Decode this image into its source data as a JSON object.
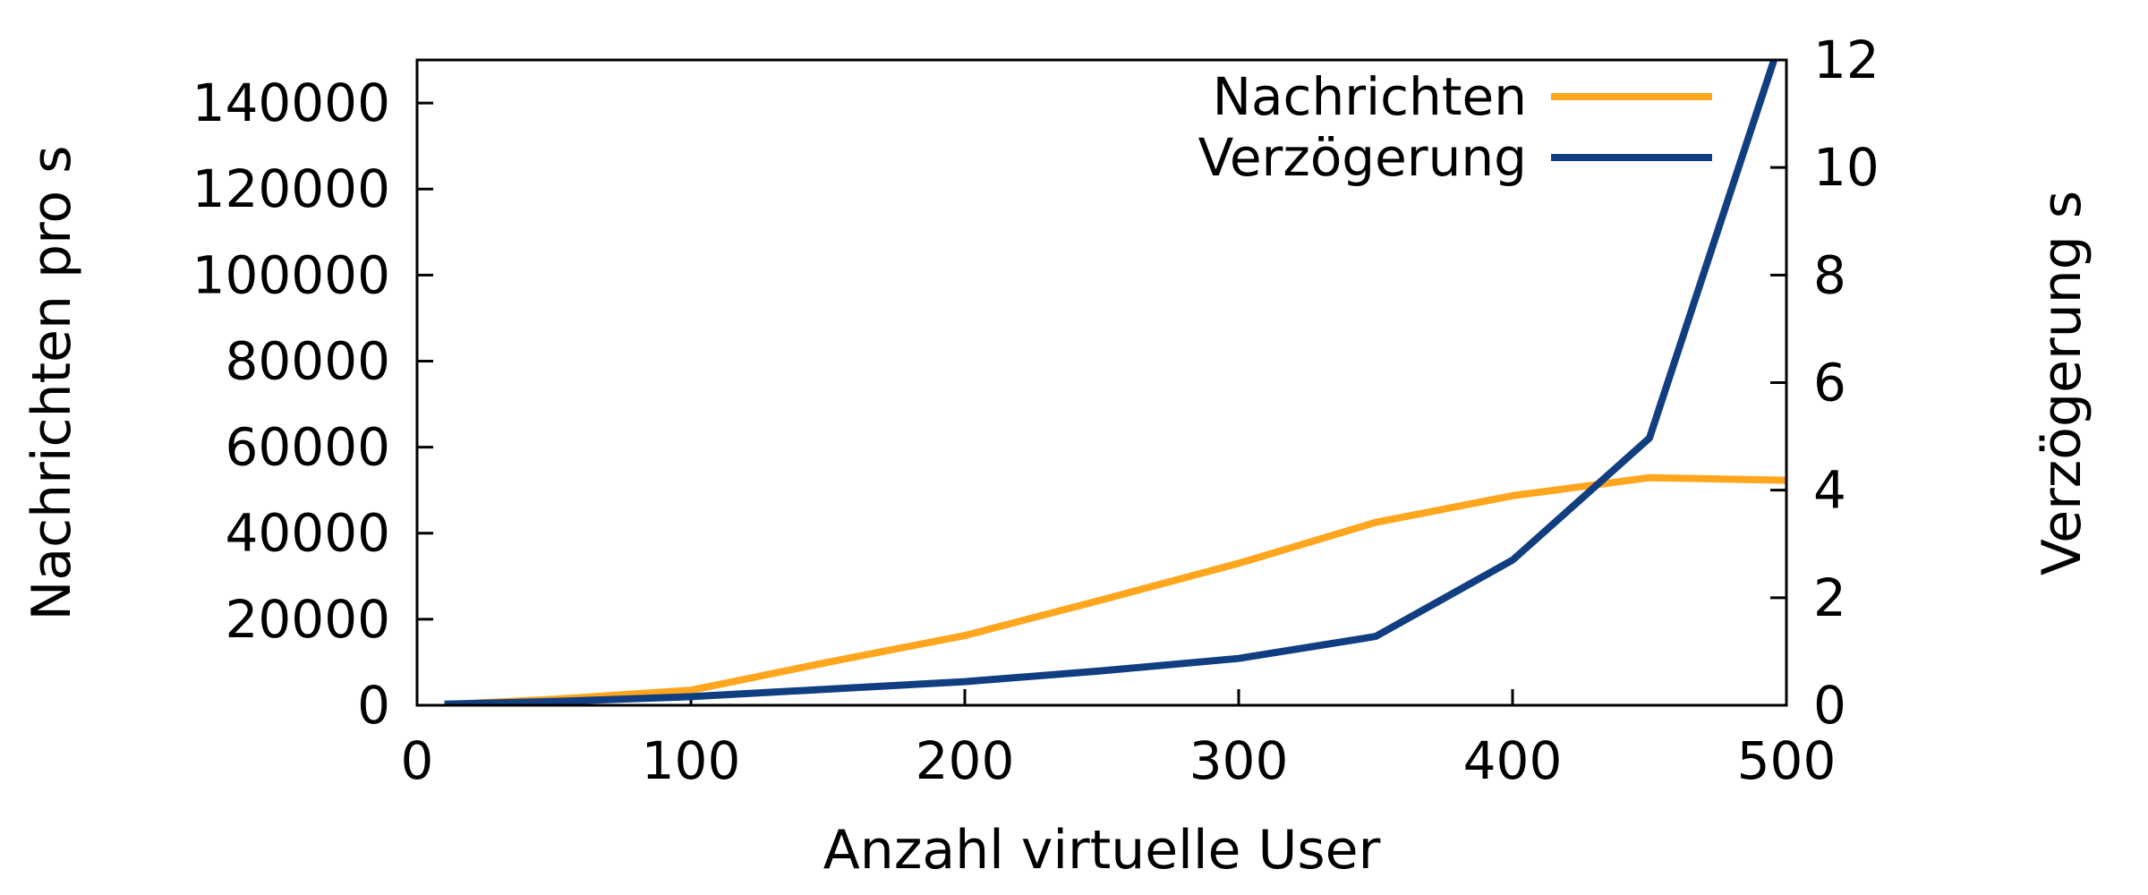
{
  "chart_data": {
    "type": "line",
    "title": "",
    "xlabel": "Anzahl virtuelle User",
    "ylabel_left": "Nachrichten pro s",
    "ylabel_right": "Verzögerung s",
    "x": [
      10,
      50,
      100,
      150,
      200,
      250,
      300,
      350,
      400,
      450,
      500
    ],
    "series": [
      {
        "name": "Nachrichten",
        "axis": "left",
        "color": "#ffa61f",
        "values": [
          150,
          1400,
          3500,
          10000,
          16200,
          24500,
          33000,
          42500,
          48700,
          52900,
          52300
        ]
      },
      {
        "name": "Verzögerung",
        "axis": "right",
        "color": "#113e81",
        "values": [
          0.02,
          0.07,
          0.16,
          0.3,
          0.44,
          0.64,
          0.87,
          1.28,
          2.7,
          4.97,
          12.7
        ]
      }
    ],
    "axes": {
      "x": {
        "min": 0,
        "max": 500,
        "tick_step": 100,
        "tick_labels": [
          "0",
          "100",
          "200",
          "300",
          "400",
          "500"
        ]
      },
      "left": {
        "min": 0,
        "max": 150000,
        "tick_step": 20000,
        "highest_label": 140000,
        "tick_labels": [
          "0",
          "20000",
          "40000",
          "60000",
          "80000",
          "100000",
          "120000",
          "140000"
        ]
      },
      "right": {
        "min": 0,
        "max": 12,
        "tick_step": 2,
        "tick_labels": [
          "0",
          "2",
          "4",
          "6",
          "8",
          "10",
          "12"
        ]
      }
    },
    "legend": {
      "position": "top-right-inside",
      "entries": [
        "Nachrichten",
        "Verzögerung"
      ]
    },
    "grid": "off",
    "background": "#ffffff",
    "border_color": "#000000"
  }
}
